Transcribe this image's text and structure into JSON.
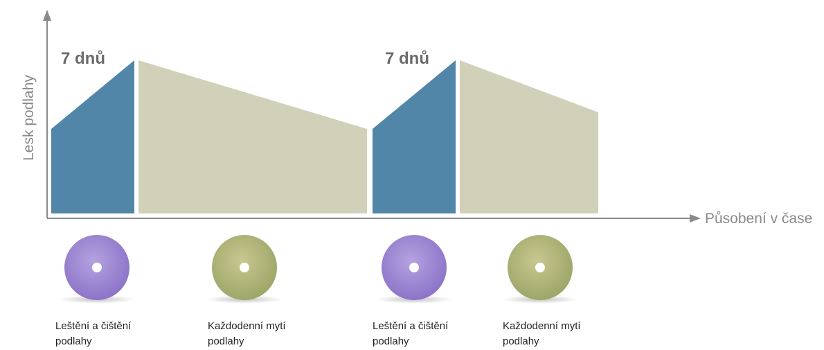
{
  "axes": {
    "y_label": "Lesk podlahy",
    "x_label": "Působení v čase"
  },
  "annotations": [
    "7 dnů",
    "7 dnů"
  ],
  "pads": [
    {
      "label_lines": [
        "Leštění a čištění",
        "podlahy"
      ]
    },
    {
      "label_lines": [
        "Každodenní mytí",
        "podlahy"
      ]
    },
    {
      "label_lines": [
        "Leštění a čištění",
        "podlahy"
      ]
    },
    {
      "label_lines": [
        "Každodenní mytí",
        "podlahy"
      ]
    }
  ]
}
